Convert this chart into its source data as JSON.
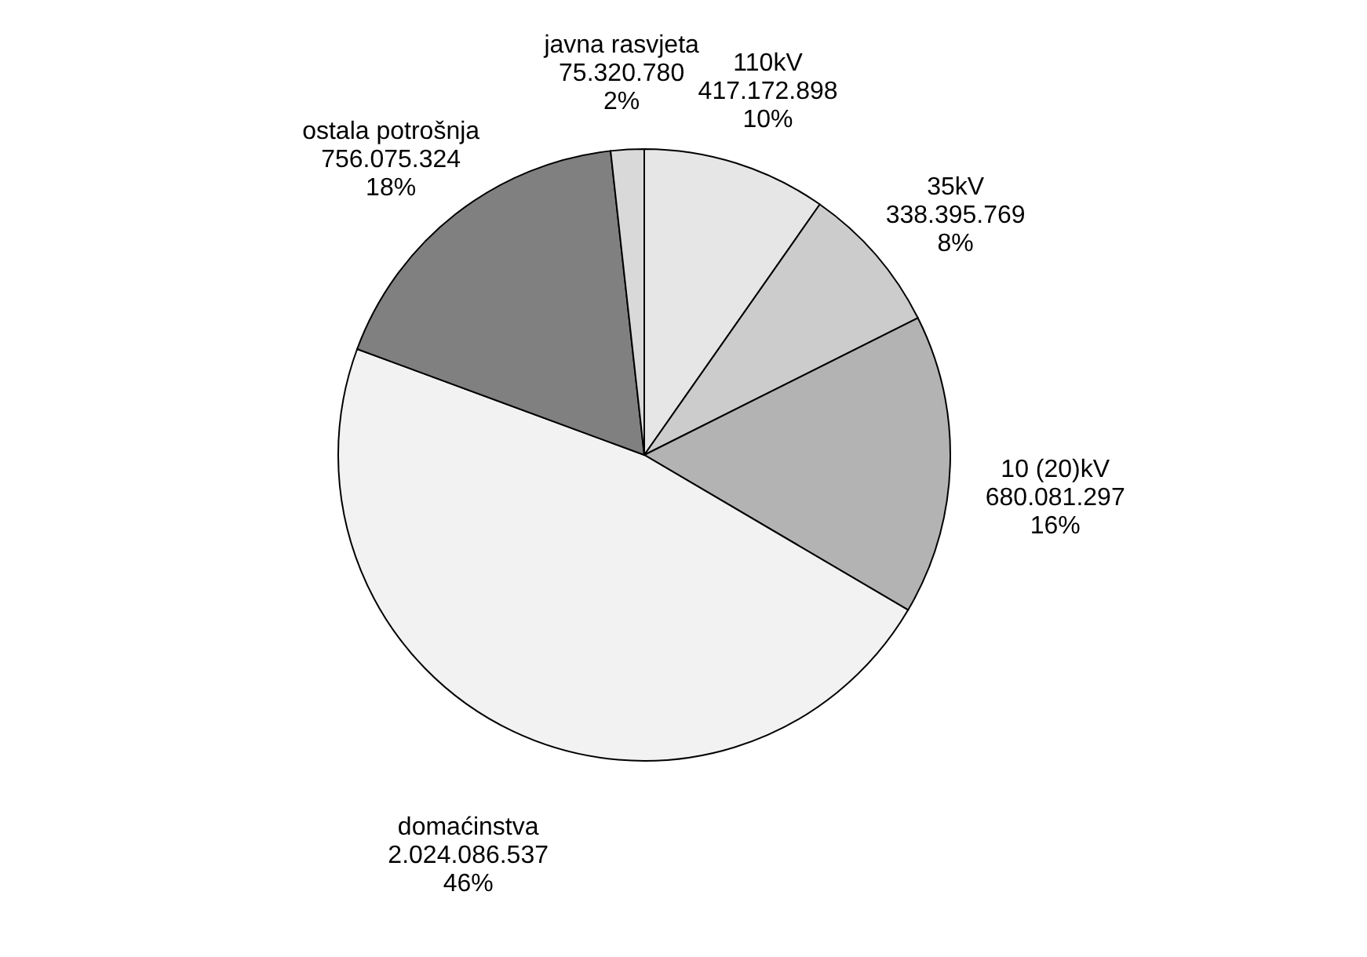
{
  "chart_data": {
    "type": "pie",
    "categories": [
      "110kV",
      "35kV",
      "10 (20)kV",
      "domaćinstva",
      "ostala potrošnja",
      "javna rasvjeta"
    ],
    "values": [
      417172898,
      338395769,
      680081297,
      2024086537,
      756075324,
      75320780
    ],
    "value_labels": [
      "417.172.898\n10%",
      "338.395.769\n8%",
      "680.081.297\n16%",
      "2.024.086.537\n46%",
      "756.075.324\n18%",
      "75.320.780\n2%"
    ],
    "colors": [
      "#e6e6e6",
      "#cccccc",
      "#b3b3b3",
      "#f2f2f2",
      "#808080",
      "#d9d9d9"
    ],
    "legend": false
  }
}
